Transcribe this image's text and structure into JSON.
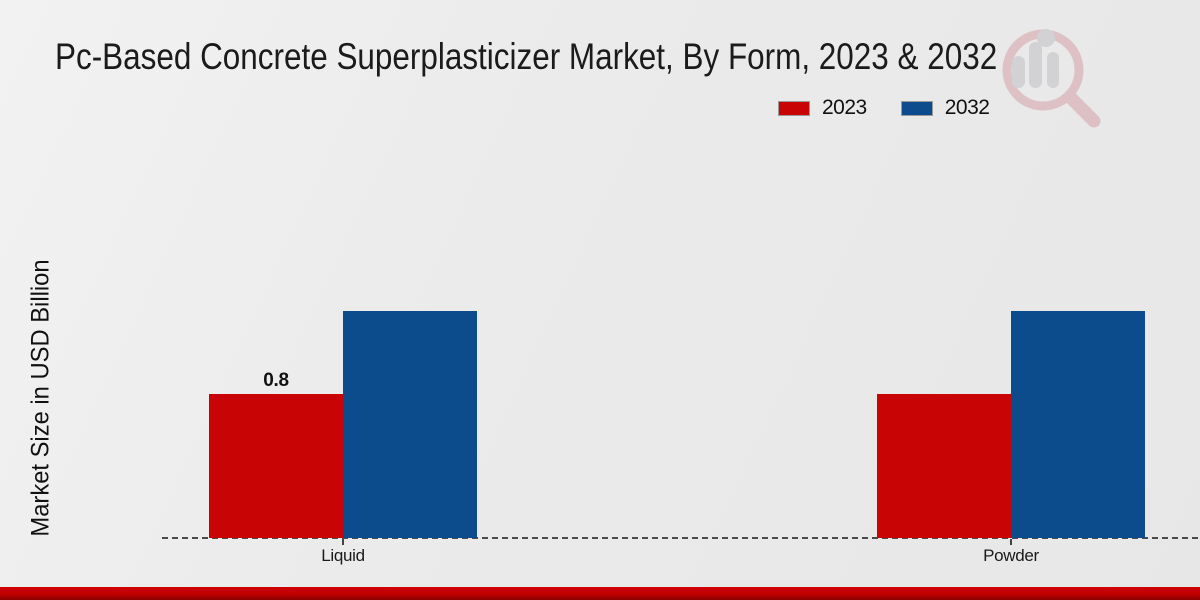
{
  "title": "Pc-Based Concrete Superplasticizer Market, By Form, 2023 & 2032",
  "ylabel": "Market Size in USD Billion",
  "legend": [
    {
      "label": "2023",
      "color": "#c90404"
    },
    {
      "label": "2032",
      "color": "#0d4c8c"
    }
  ],
  "chart_data": {
    "type": "bar",
    "categories": [
      "Liquid",
      "Powder"
    ],
    "series": [
      {
        "name": "2023",
        "color": "#c90404",
        "values": [
          0.8,
          0.8
        ],
        "labels": [
          "0.8",
          ""
        ]
      },
      {
        "name": "2032",
        "color": "#0d4c8c",
        "values": [
          1.26,
          1.26
        ],
        "labels": [
          "",
          ""
        ]
      }
    ],
    "title": "Pc-Based Concrete Superplasticizer Market, By Form, 2023 & 2032",
    "xlabel": "",
    "ylabel": "Market Size in USD Billion",
    "ylim": [
      0,
      1.26
    ],
    "grid": false,
    "baseline_style": "dashed",
    "legend_position": "top-right",
    "value_label_shown_only_for": "2023 Liquid"
  },
  "colors": {
    "background": "#eaeaea",
    "footer_bar": "#c00000",
    "baseline": "#4a4a4a",
    "text": "#1b1b1b"
  },
  "watermark_icon": "magnifier-bar-chart-logo"
}
